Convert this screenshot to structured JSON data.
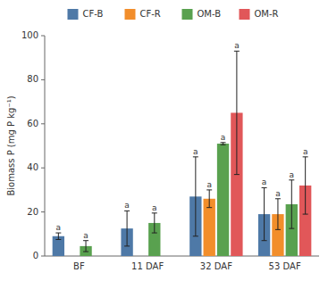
{
  "chart_data": {
    "type": "bar",
    "ylabel": "Biomass P (mg P kg⁻¹)",
    "categories": [
      "BF",
      "11 DAF",
      "32 DAF",
      "53 DAF"
    ],
    "series": [
      {
        "name": "CF-B",
        "values": [
          9.0,
          12.5,
          27.0,
          19.0
        ],
        "errors": [
          1.5,
          8.0,
          18.0,
          12.0
        ],
        "letters": [
          "a",
          "a",
          "a",
          "a"
        ]
      },
      {
        "name": "CF-R",
        "values": [
          null,
          null,
          26.0,
          19.0
        ],
        "errors": [
          null,
          null,
          4.0,
          7.0
        ],
        "letters": [
          null,
          null,
          "a",
          "a"
        ]
      },
      {
        "name": "OM-B",
        "values": [
          4.5,
          15.0,
          51.0,
          23.5
        ],
        "errors": [
          2.5,
          4.5,
          0.5,
          11.0
        ],
        "letters": [
          "a",
          "a",
          "a",
          "a"
        ]
      },
      {
        "name": "OM-R",
        "values": [
          null,
          null,
          65.0,
          32.0
        ],
        "errors": [
          null,
          null,
          28.0,
          13.0
        ],
        "letters": [
          null,
          null,
          "a",
          "a"
        ]
      }
    ],
    "ylim": [
      0,
      100
    ],
    "yticks": [
      0,
      20,
      40,
      60,
      80,
      100
    ],
    "grid": false,
    "legend": "top"
  }
}
